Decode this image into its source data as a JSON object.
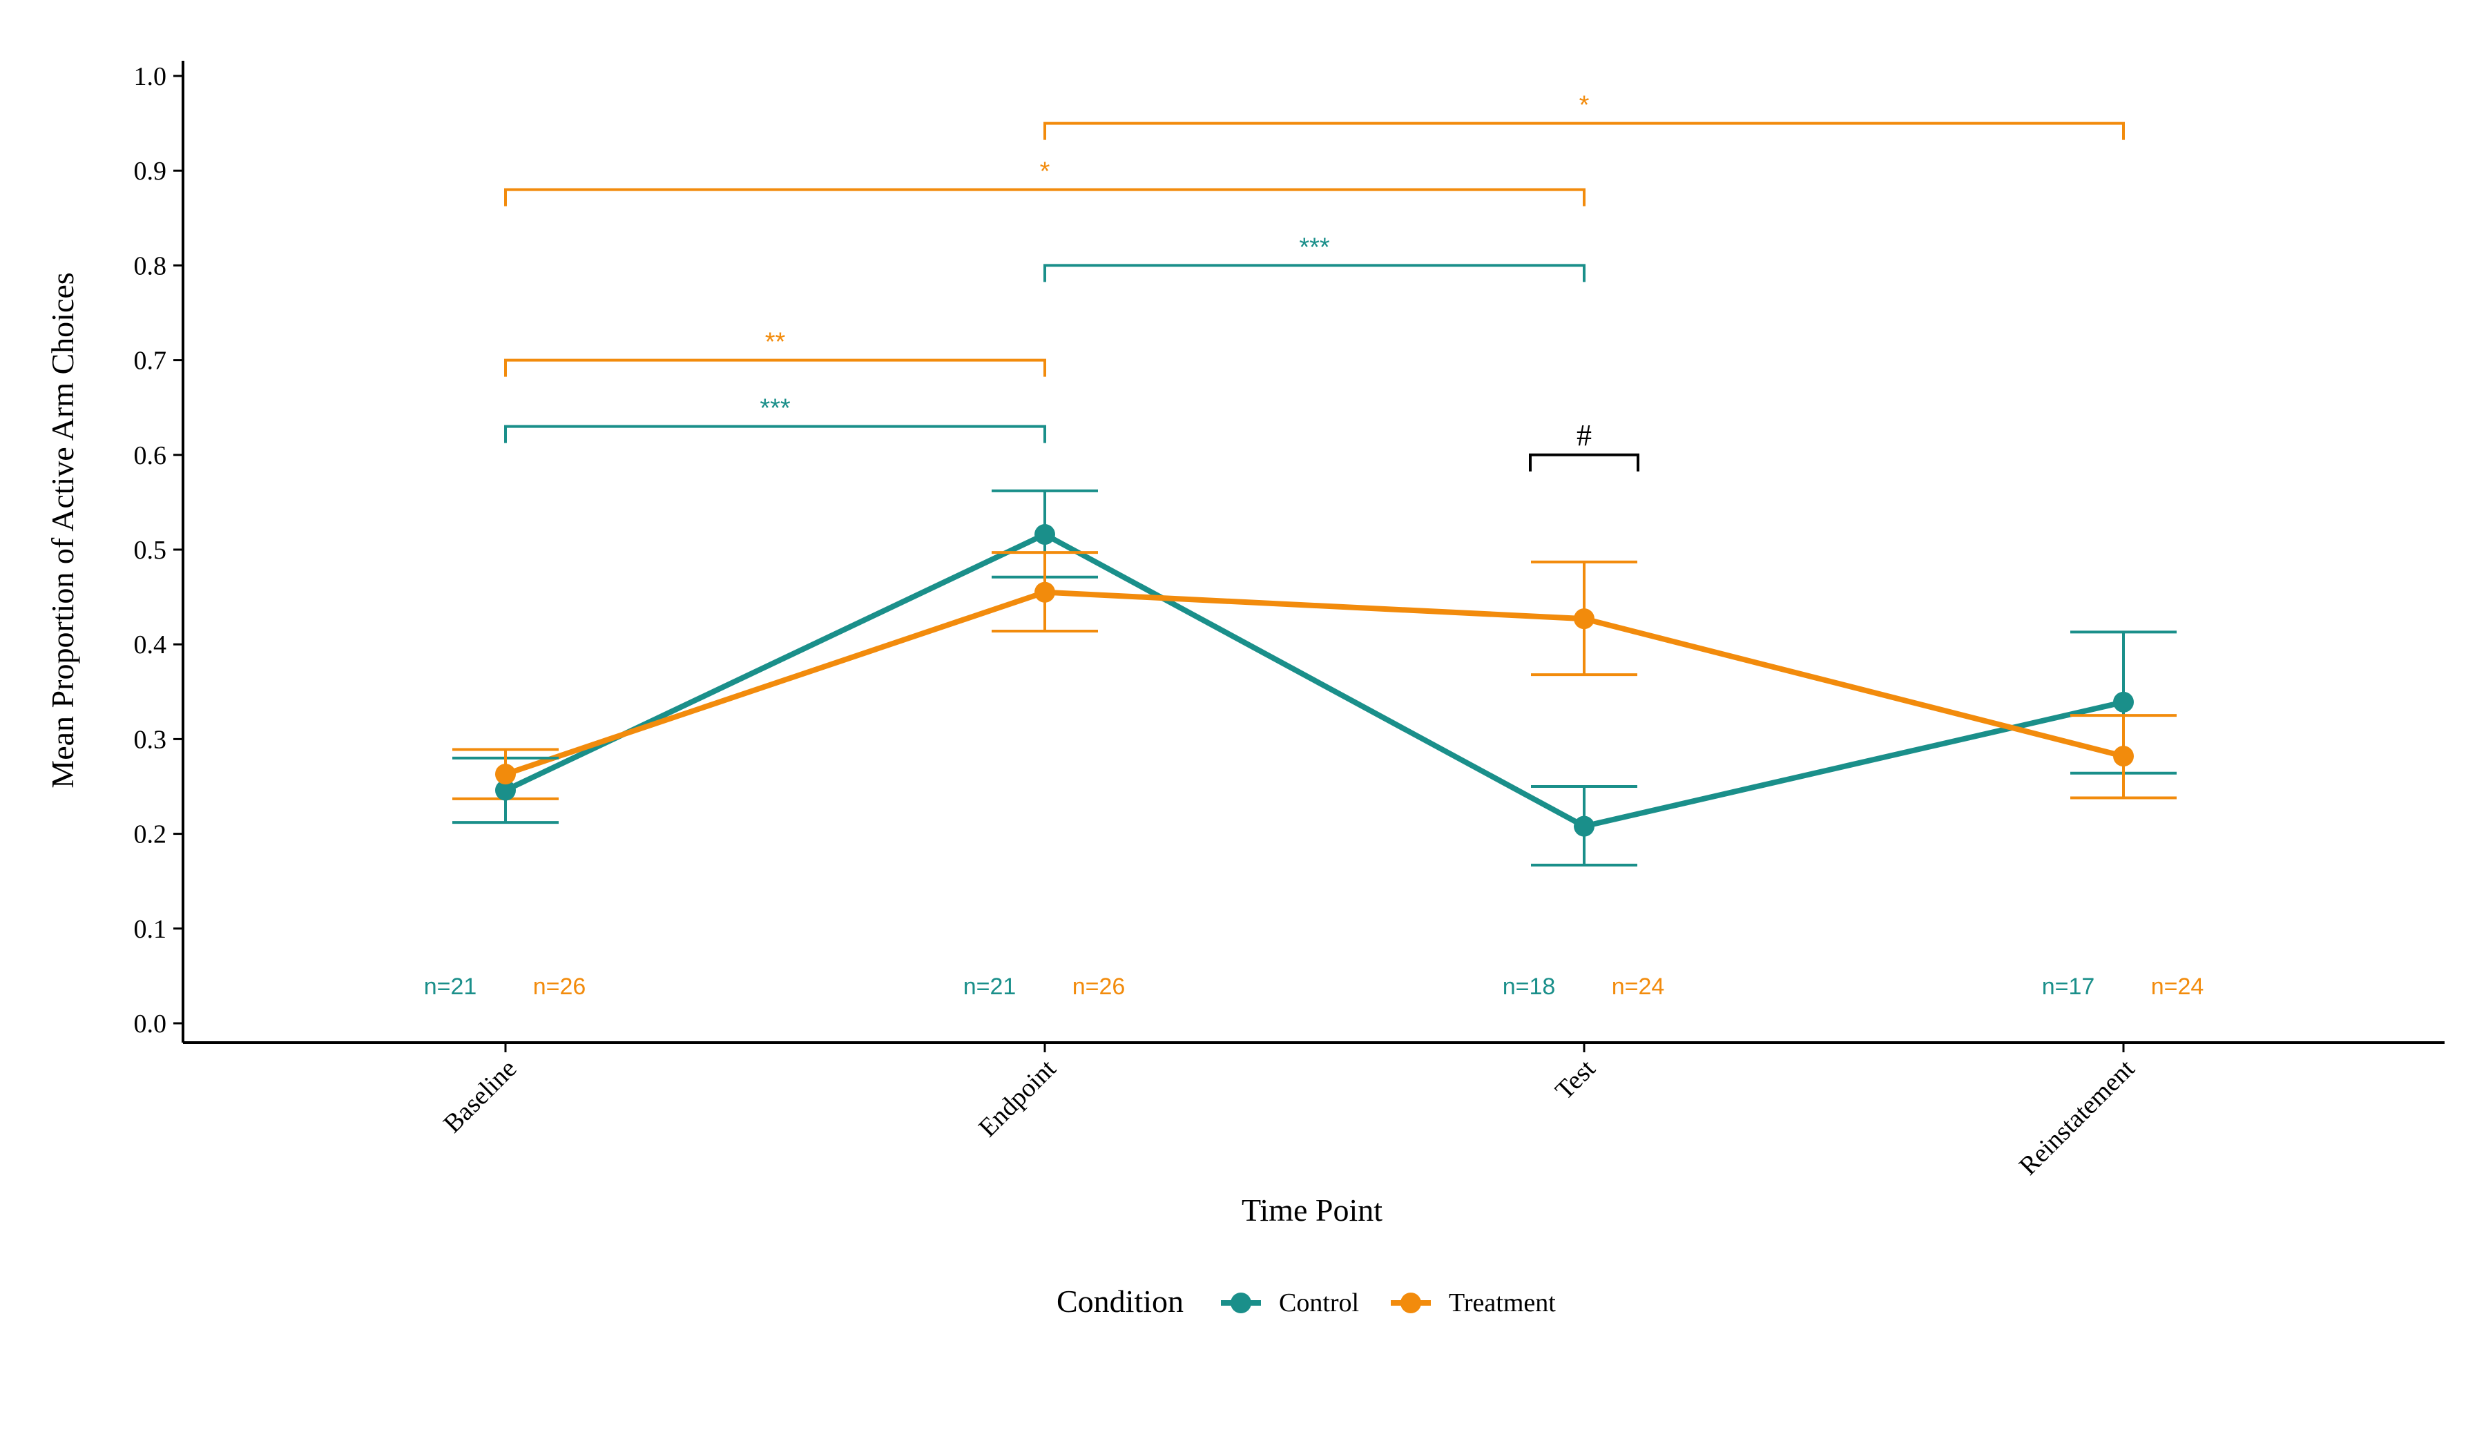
{
  "chart_data": {
    "type": "line",
    "xlabel": "Time Point",
    "ylabel": "Mean Proportion of Active Arm Choices",
    "categories": [
      "Baseline",
      "Endpoint",
      "Test",
      "Reinstatement"
    ],
    "ylim": [
      0,
      1
    ],
    "yticks": [
      "0.0",
      "0.1",
      "0.2",
      "0.3",
      "0.4",
      "0.5",
      "0.6",
      "0.7",
      "0.8",
      "0.9",
      "1.0"
    ],
    "grid": false,
    "legend": {
      "title": "Condition",
      "position": "bottom"
    },
    "series": [
      {
        "name": "Control",
        "color": "#1a8f8a",
        "values": [
          0.246,
          0.516,
          0.208,
          0.339
        ],
        "error_low": [
          0.212,
          0.471,
          0.167,
          0.264
        ],
        "error_high": [
          0.28,
          0.562,
          0.25,
          0.413
        ],
        "n_labels": [
          "n=21",
          "n=21",
          "n=18",
          "n=17"
        ]
      },
      {
        "name": "Treatment",
        "color": "#f28b0c",
        "values": [
          0.263,
          0.455,
          0.427,
          0.282
        ],
        "error_low": [
          0.237,
          0.414,
          0.368,
          0.238
        ],
        "error_high": [
          0.289,
          0.497,
          0.487,
          0.325
        ],
        "n_labels": [
          "n=26",
          "n=26",
          "n=24",
          "n=24"
        ]
      }
    ],
    "annotations": [
      {
        "from": "Baseline",
        "to": "Endpoint",
        "y": 0.63,
        "label": "***",
        "color": "#1a8f8a"
      },
      {
        "from": "Baseline",
        "to": "Endpoint",
        "y": 0.7,
        "label": "**",
        "color": "#f28b0c"
      },
      {
        "from": "Endpoint",
        "to": "Test",
        "y": 0.8,
        "label": "***",
        "color": "#1a8f8a"
      },
      {
        "from": "Baseline",
        "to": "Test",
        "y": 0.88,
        "label": "*",
        "color": "#f28b0c"
      },
      {
        "from": "Endpoint",
        "to": "Reinstatement",
        "y": 0.95,
        "label": "*",
        "color": "#f28b0c"
      },
      {
        "from": "Test",
        "to": "Test",
        "y": 0.6,
        "label": "#",
        "color": "#000000",
        "local": true
      }
    ],
    "n_label_y": 0.04
  }
}
